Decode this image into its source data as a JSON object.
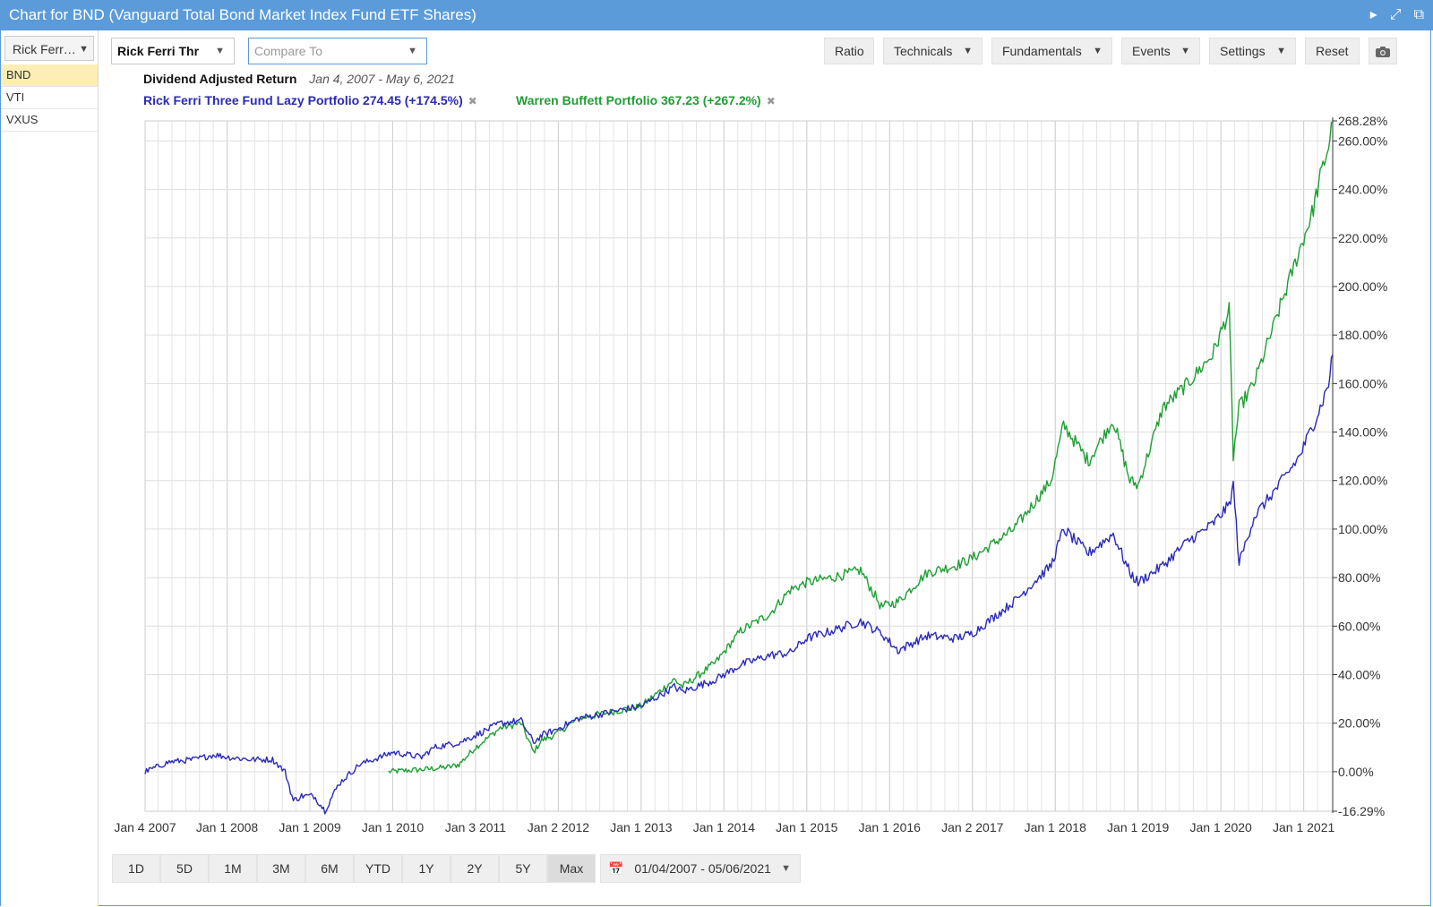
{
  "window": {
    "title": "Chart for BND (Vanguard Total Bond Market Index Fund ETF Shares)"
  },
  "sidebar": {
    "selector_value": "Rick Ferr…",
    "items": [
      "BND",
      "VTI",
      "VXUS"
    ]
  },
  "toolbar": {
    "portfolio_value": "Rick Ferri Thr",
    "compare_placeholder": "Compare To",
    "ratio": "Ratio",
    "technicals": "Technicals",
    "fundamentals": "Fundamentals",
    "events": "Events",
    "settings": "Settings",
    "reset": "Reset"
  },
  "chart_header": {
    "metric": "Dividend Adjusted Return",
    "date_span": "Jan 4, 2007 - May 6, 2021"
  },
  "legend": [
    {
      "label": "Rick Ferri Three Fund Lazy Portfolio 274.45 (+174.5%)",
      "color": "#2b2ab8"
    },
    {
      "label": "Warren Buffett Portfolio 367.23 (+267.2%)",
      "color": "#1e9e34"
    }
  ],
  "chart_data": {
    "type": "line",
    "title": "Dividend Adjusted Return",
    "xlabel": "",
    "ylabel": "",
    "x_ticks": [
      "Jan 4 2007",
      "Jan 1 2008",
      "Jan 1 2009",
      "Jan 1 2010",
      "Jan 3 2011",
      "Jan 2 2012",
      "Jan 1 2013",
      "Jan 1 2014",
      "Jan 1 2015",
      "Jan 1 2016",
      "Jan 2 2017",
      "Jan 1 2018",
      "Jan 1 2019",
      "Jan 1 2020",
      "Jan 1 2021"
    ],
    "y_ticks": [
      "268.28%",
      "260.00%",
      "240.00%",
      "220.00%",
      "200.00%",
      "180.00%",
      "160.00%",
      "140.00%",
      "120.00%",
      "100.00%",
      "80.00%",
      "60.00%",
      "40.00%",
      "20.00%",
      "0.00%",
      "-16.29%"
    ],
    "xlim": [
      2007.01,
      2021.35
    ],
    "ylim": [
      -16.29,
      268.28
    ],
    "y_unit": "%",
    "grid": true,
    "series": [
      {
        "name": "Rick Ferri Three Fund Lazy Portfolio",
        "color": "#2b2ab8",
        "x": [
          2007.01,
          2007.3,
          2007.6,
          2007.85,
          2008.0,
          2008.3,
          2008.55,
          2008.7,
          2008.8,
          2008.9,
          2009.05,
          2009.18,
          2009.35,
          2009.6,
          2009.85,
          2010.0,
          2010.35,
          2010.5,
          2010.8,
          2011.0,
          2011.3,
          2011.55,
          2011.7,
          2011.8,
          2011.95,
          2012.25,
          2012.4,
          2012.7,
          2013.0,
          2013.4,
          2013.5,
          2013.9,
          2014.2,
          2014.55,
          2014.8,
          2015.0,
          2015.3,
          2015.65,
          2015.9,
          2016.1,
          2016.45,
          2016.8,
          2017.0,
          2017.5,
          2017.95,
          2018.1,
          2018.4,
          2018.7,
          2018.9,
          2019.0,
          2019.3,
          2019.6,
          2019.9,
          2020.1,
          2020.15,
          2020.22,
          2020.4,
          2020.7,
          2020.95,
          2021.1,
          2021.2,
          2021.3,
          2021.35
        ],
        "y": [
          0,
          4,
          5,
          7,
          6,
          5,
          5,
          0,
          -12,
          -10,
          -10,
          -16,
          -5,
          3,
          6,
          8,
          6,
          10,
          12,
          15,
          20,
          21,
          12,
          15,
          17,
          22,
          23,
          25,
          27,
          35,
          33,
          38,
          44,
          48,
          49,
          55,
          58,
          62,
          57,
          50,
          56,
          55,
          57,
          70,
          85,
          100,
          90,
          98,
          82,
          78,
          85,
          95,
          102,
          110,
          118,
          86,
          105,
          118,
          130,
          142,
          150,
          160,
          172
        ]
      },
      {
        "name": "Warren Buffett Portfolio",
        "color": "#1e9e34",
        "x": [
          2009.95,
          2010.4,
          2010.7,
          2010.8,
          2011.0,
          2011.3,
          2011.55,
          2011.7,
          2011.8,
          2011.95,
          2012.25,
          2012.4,
          2012.7,
          2013.0,
          2013.4,
          2013.5,
          2013.9,
          2014.2,
          2014.55,
          2014.8,
          2015.0,
          2015.3,
          2015.65,
          2015.9,
          2016.1,
          2016.45,
          2016.8,
          2017.0,
          2017.5,
          2017.95,
          2018.1,
          2018.4,
          2018.7,
          2018.9,
          2019.0,
          2019.3,
          2019.6,
          2019.9,
          2020.1,
          2020.15,
          2020.22,
          2020.4,
          2020.7,
          2020.95,
          2021.1,
          2021.2,
          2021.3,
          2021.35
        ],
        "y": [
          0,
          1,
          2,
          3,
          10,
          18,
          20,
          8,
          13,
          15,
          22,
          23,
          25,
          27,
          38,
          35,
          45,
          58,
          65,
          75,
          78,
          80,
          83,
          68,
          70,
          82,
          85,
          88,
          100,
          120,
          143,
          128,
          145,
          120,
          118,
          150,
          160,
          172,
          190,
          130,
          150,
          160,
          190,
          215,
          230,
          245,
          258,
          268
        ]
      }
    ]
  },
  "ranges": [
    "1D",
    "5D",
    "1M",
    "3M",
    "6M",
    "YTD",
    "1Y",
    "2Y",
    "5Y",
    "Max"
  ],
  "active_range": "Max",
  "date_range_value": "01/04/2007 - 05/06/2021",
  "colors": {
    "titlebar": "#5b9bd9",
    "series_blue": "#2b2ab8",
    "series_green": "#1e9e34",
    "active_item": "#fdeeb5"
  }
}
